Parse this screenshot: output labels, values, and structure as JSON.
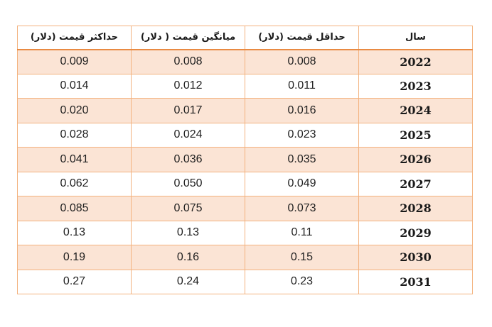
{
  "table": {
    "headers": {
      "max_price": "حداکثر قیمت (دلار)",
      "avg_price": "میانگین قیمت ( دلار)",
      "min_price": "حداقل قیمت (دلار)",
      "year": "سال"
    },
    "rows": [
      {
        "year": "2022",
        "min": "0.008",
        "avg": "0.008",
        "max": "0.009"
      },
      {
        "year": "2023",
        "min": "0.011",
        "avg": "0.012",
        "max": "0.014"
      },
      {
        "year": "2024",
        "min": "0.016",
        "avg": "0.017",
        "max": "0.020"
      },
      {
        "year": "2025",
        "min": "0.023",
        "avg": "0.024",
        "max": "0.028"
      },
      {
        "year": "2026",
        "min": "0.035",
        "avg": "0.036",
        "max": "0.041"
      },
      {
        "year": "2027",
        "min": "0.049",
        "avg": "0.050",
        "max": "0.062"
      },
      {
        "year": "2028",
        "min": "0.073",
        "avg": "0.075",
        "max": "0.085"
      },
      {
        "year": "2029",
        "min": "0.11",
        "avg": "0.13",
        "max": "0.13"
      },
      {
        "year": "2030",
        "min": "0.15",
        "avg": "0.16",
        "max": "0.19"
      },
      {
        "year": "2031",
        "min": "0.23",
        "avg": "0.24",
        "max": "0.27"
      }
    ]
  },
  "colors": {
    "border": "#f3b27e",
    "header_rule": "#e98a42",
    "band": "#fbe4d5"
  }
}
